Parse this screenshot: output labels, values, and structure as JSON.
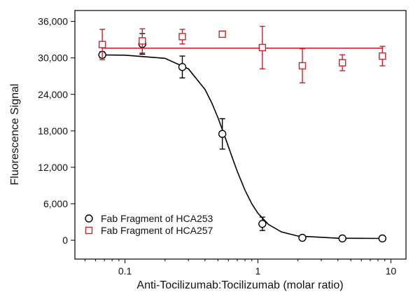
{
  "chart_data": {
    "type": "scatter",
    "xlabel": "Anti-Tocilizumab:Tocilizumab (molar ratio)",
    "ylabel": "Fluorescence Signal",
    "x_scale": "log",
    "xlim": [
      0.042,
      13
    ],
    "ylim": [
      -3100,
      37800
    ],
    "xticks": [
      0.1,
      1,
      10
    ],
    "xminorticks": [
      0.05,
      0.06,
      0.07,
      0.08,
      0.09,
      0.2,
      0.3,
      0.4,
      0.5,
      0.6,
      0.7,
      0.8,
      0.9,
      2,
      3,
      4,
      5,
      6,
      7,
      8,
      9
    ],
    "yticks": [
      0,
      {
        "value": 6000,
        "label": "6,000"
      },
      {
        "value": 12000,
        "label": "12,000"
      },
      {
        "value": 18000,
        "label": "18,000"
      },
      {
        "value": 24000,
        "label": "24,000"
      },
      {
        "value": 30000,
        "label": "30,000"
      },
      {
        "value": 36000,
        "label": "36,000"
      }
    ],
    "legend": "lower left",
    "series": [
      {
        "name": "Fab Fragment of HCA253",
        "color": "#000000",
        "marker": "circle",
        "x": [
          0.0675,
          0.135,
          0.27,
          0.54,
          1.08,
          2.16,
          4.32,
          8.64
        ],
        "values": [
          30500,
          32300,
          28500,
          17500,
          2700,
          400,
          300,
          300
        ],
        "errors": [
          500,
          1700,
          1800,
          2500,
          1100,
          200,
          200,
          200
        ],
        "fit": {
          "x": [
            0.0675,
            0.1,
            0.2,
            0.3,
            0.4,
            0.45,
            0.5,
            0.55,
            0.6,
            0.65,
            0.7,
            0.8,
            0.9,
            1.0,
            1.2,
            1.5,
            2,
            4,
            8.64
          ],
          "values": [
            30490,
            30452,
            29931,
            28199,
            24813,
            22588,
            20181,
            17747,
            15400,
            13239,
            11314,
            8212,
            5988,
            4443,
            2600,
            1375,
            691,
            333,
            300
          ]
        }
      },
      {
        "name": "Fab Fragment of HCA257",
        "color": "#c0282d",
        "marker": "square",
        "x": [
          0.0675,
          0.135,
          0.27,
          0.54,
          1.08,
          2.16,
          4.32,
          8.64
        ],
        "values": [
          32200,
          32800,
          33500,
          33900,
          31700,
          28700,
          29200,
          30300
        ],
        "errors": [
          2500,
          2000,
          1200,
          500,
          3500,
          2800,
          1300,
          1600
        ],
        "fit": {
          "x": [
            0.0675,
            8.64
          ],
          "values": [
            31600,
            31600
          ]
        }
      }
    ]
  }
}
